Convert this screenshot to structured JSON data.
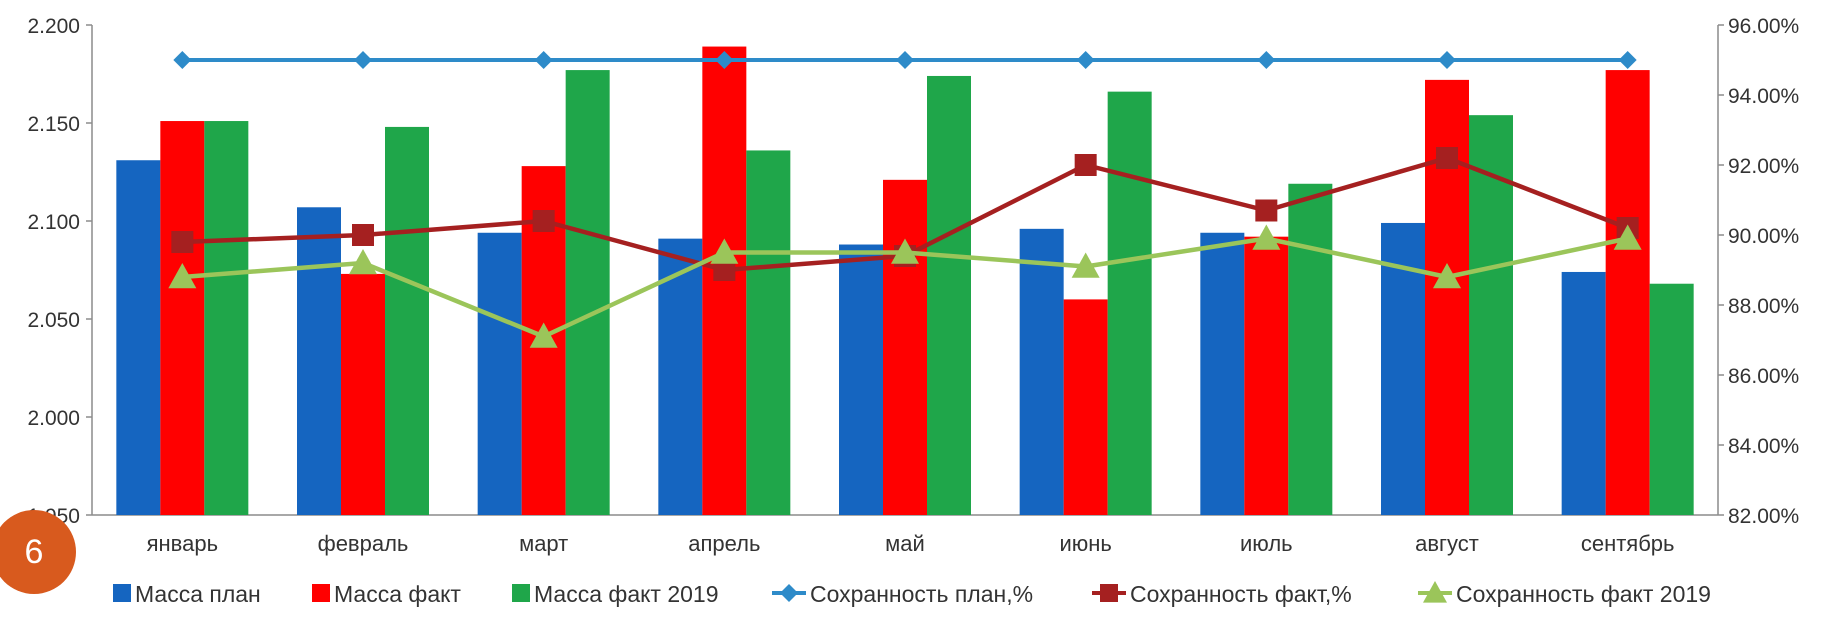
{
  "page_number": "6",
  "colors": {
    "plan_mass": "#1565C0",
    "fact_mass": "#FF0000",
    "fact_mass_2019": "#1FA64A",
    "plan_safety": "#2E8BC9",
    "fact_safety": "#A52020",
    "fact_safety_2019": "#9BC55A",
    "badge": "#D85A1E"
  },
  "chart_data": {
    "type": "bar",
    "categories": [
      "январь",
      "февраль",
      "март",
      "апрель",
      "май",
      "июнь",
      "июль",
      "август",
      "сентябрь"
    ],
    "y_left": {
      "min": 1.95,
      "max": 2.2,
      "ticks": [
        "1.950",
        "2.000",
        "2.050",
        "2.100",
        "2.150",
        "2.200"
      ]
    },
    "y_right": {
      "min": 82,
      "max": 96,
      "ticks": [
        "82.00%",
        "84.00%",
        "86.00%",
        "88.00%",
        "90.00%",
        "92.00%",
        "94.00%",
        "96.00%"
      ]
    },
    "bar_series": [
      {
        "name": "Масса план",
        "values": [
          2.131,
          2.107,
          2.094,
          2.091,
          2.088,
          2.096,
          2.094,
          2.099,
          2.074
        ]
      },
      {
        "name": "Масса факт",
        "values": [
          2.151,
          2.073,
          2.128,
          2.189,
          2.121,
          2.06,
          2.092,
          2.172,
          2.177
        ]
      },
      {
        "name": "Масса факт 2019",
        "values": [
          2.151,
          2.148,
          2.177,
          2.136,
          2.174,
          2.166,
          2.119,
          2.154,
          2.068
        ]
      }
    ],
    "line_series": [
      {
        "name": "Сохранность план,%",
        "axis": "right",
        "marker": "diamond",
        "values": [
          95.0,
          95.0,
          95.0,
          95.0,
          95.0,
          95.0,
          95.0,
          95.0,
          95.0
        ]
      },
      {
        "name": "Сохранность факт,%",
        "axis": "right",
        "marker": "square",
        "values": [
          89.8,
          90.0,
          90.4,
          89.0,
          89.4,
          92.0,
          90.7,
          92.2,
          90.2
        ]
      },
      {
        "name": "Сохранность факт 2019",
        "axis": "right",
        "marker": "triangle",
        "values": [
          88.8,
          89.2,
          87.1,
          89.5,
          89.5,
          89.1,
          89.9,
          88.8,
          89.9
        ]
      }
    ],
    "legend_position": "bottom",
    "grid": false
  }
}
